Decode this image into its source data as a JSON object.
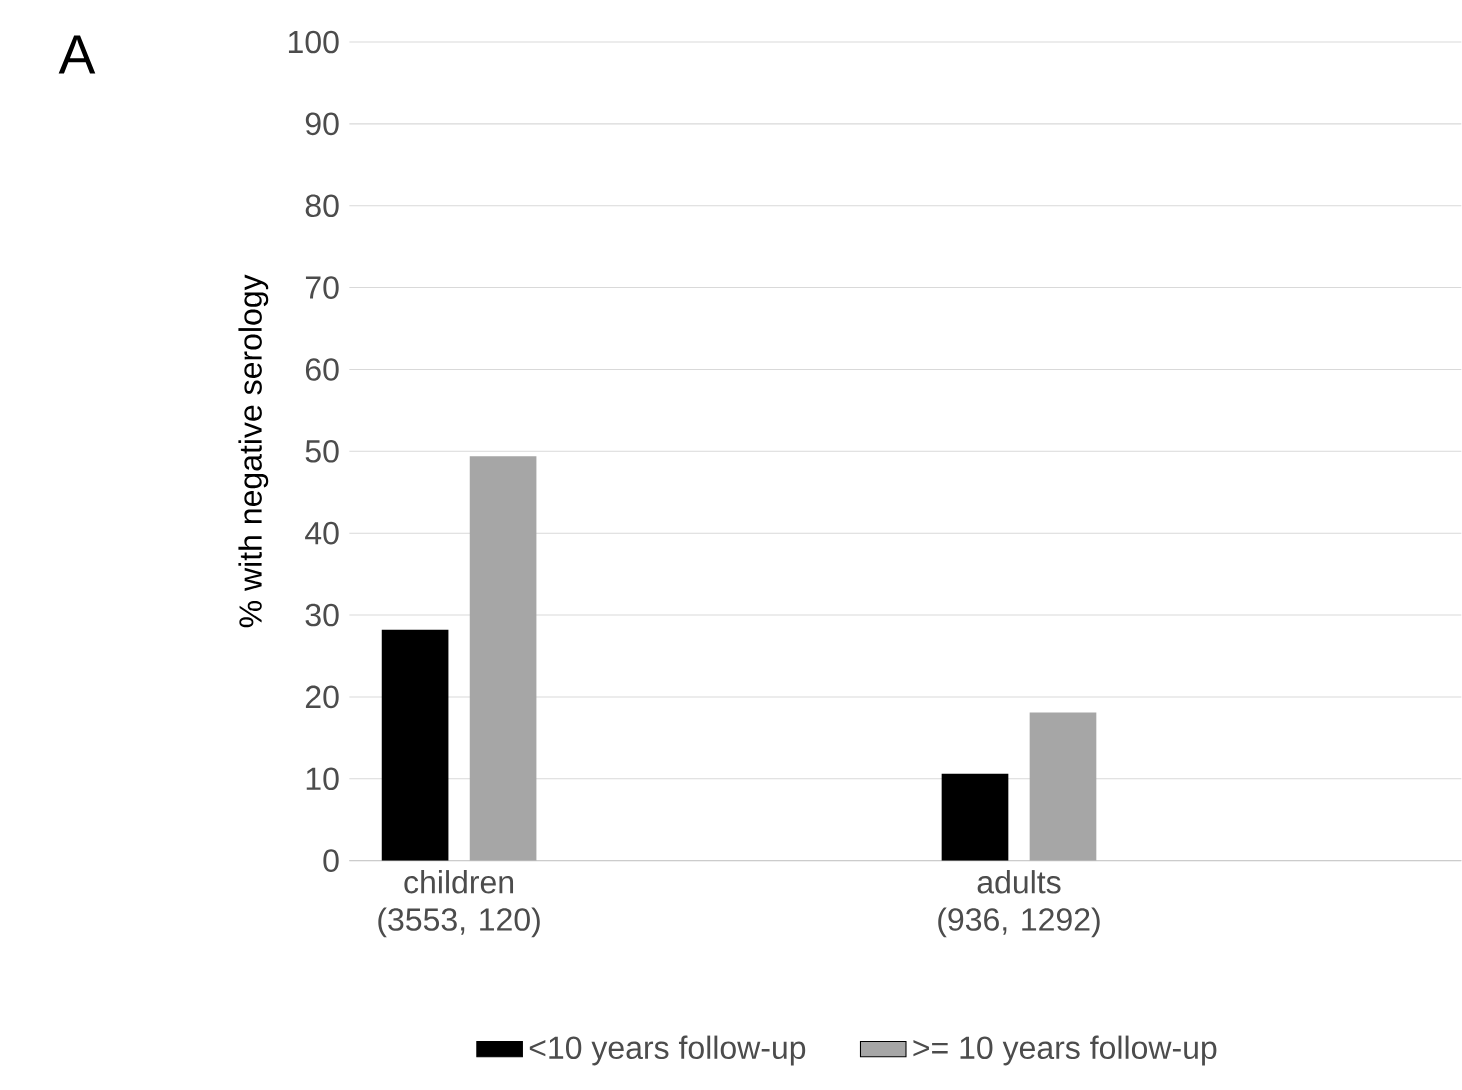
{
  "chart_data": {
    "type": "bar",
    "title": "A",
    "ylabel": "% with negative serology",
    "categories": [
      "children (3553, 120)",
      "adults (936, 1292)"
    ],
    "series": [
      {
        "name": "<10 years follow-up",
        "color": "#000000",
        "values": [
          28.2,
          10.6
        ]
      },
      {
        "name": ">= 10 years follow-up",
        "color": "#a6a6a6",
        "values": [
          49.4,
          18.1
        ]
      }
    ],
    "ylim": [
      0,
      100
    ],
    "yticks": [
      0,
      10,
      20,
      30,
      40,
      50,
      60,
      70,
      80,
      90,
      100
    ],
    "grid": "y",
    "legend": "bottom"
  }
}
